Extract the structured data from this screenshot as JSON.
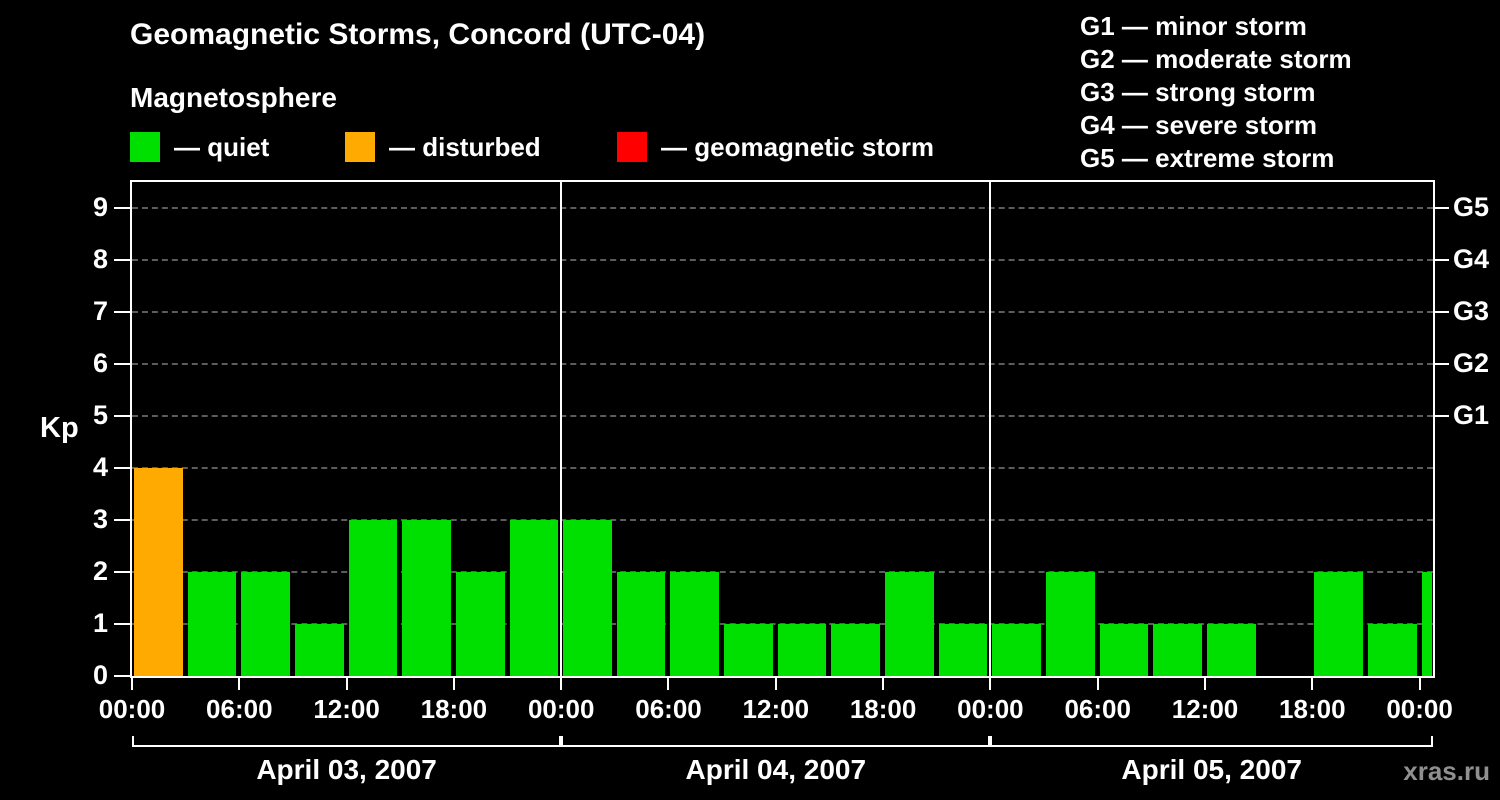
{
  "title": "Geomagnetic Storms, Concord (UTC-04)",
  "legend": {
    "heading": "Magnetosphere",
    "items": [
      {
        "name": "quiet",
        "label": "— quiet",
        "color": "#00e000"
      },
      {
        "name": "disturbed",
        "label": "— disturbed",
        "color": "#ffaa00"
      },
      {
        "name": "storm",
        "label": "— geomagnetic storm",
        "color": "#ff0000"
      }
    ]
  },
  "storm_scale": [
    "G1 — minor storm",
    "G2 — moderate storm",
    "G3 — strong storm",
    "G4 — severe storm",
    "G5 — extreme storm"
  ],
  "watermark": "xras.ru",
  "chart_data": {
    "type": "bar",
    "title": "Geomagnetic Storms, Concord (UTC-04)",
    "ylabel": "Kp",
    "ylim": [
      0,
      9.5
    ],
    "yticks": [
      0,
      1,
      2,
      3,
      4,
      5,
      6,
      7,
      8,
      9
    ],
    "grid": true,
    "right_axis_labels": [
      {
        "kp": 5,
        "label": "G1"
      },
      {
        "kp": 6,
        "label": "G2"
      },
      {
        "kp": 7,
        "label": "G3"
      },
      {
        "kp": 8,
        "label": "G4"
      },
      {
        "kp": 9,
        "label": "G5"
      }
    ],
    "x_hours_total": 72.75,
    "time_tick_interval_hours": 6,
    "time_ticks": [
      "00:00",
      "06:00",
      "12:00",
      "18:00",
      "00:00",
      "06:00",
      "12:00",
      "18:00",
      "00:00",
      "06:00",
      "12:00",
      "18:00",
      "00:00"
    ],
    "days": [
      {
        "label": "April 03, 2007",
        "start_hour": 0
      },
      {
        "label": "April 04, 2007",
        "start_hour": 24
      },
      {
        "label": "April 05, 2007",
        "start_hour": 48
      }
    ],
    "colors": {
      "quiet": "#00e000",
      "disturbed": "#ffaa00",
      "storm": "#ff0000"
    },
    "bars": [
      {
        "start_hour": 0,
        "kp": 4
      },
      {
        "start_hour": 3,
        "kp": 2
      },
      {
        "start_hour": 6,
        "kp": 2
      },
      {
        "start_hour": 9,
        "kp": 1
      },
      {
        "start_hour": 12,
        "kp": 3
      },
      {
        "start_hour": 15,
        "kp": 3
      },
      {
        "start_hour": 18,
        "kp": 2
      },
      {
        "start_hour": 21,
        "kp": 3
      },
      {
        "start_hour": 24,
        "kp": 3
      },
      {
        "start_hour": 27,
        "kp": 2
      },
      {
        "start_hour": 30,
        "kp": 2
      },
      {
        "start_hour": 33,
        "kp": 1
      },
      {
        "start_hour": 36,
        "kp": 1
      },
      {
        "start_hour": 39,
        "kp": 1
      },
      {
        "start_hour": 42,
        "kp": 2
      },
      {
        "start_hour": 45,
        "kp": 1
      },
      {
        "start_hour": 48,
        "kp": 1
      },
      {
        "start_hour": 51,
        "kp": 2
      },
      {
        "start_hour": 54,
        "kp": 1
      },
      {
        "start_hour": 57,
        "kp": 1
      },
      {
        "start_hour": 60,
        "kp": 1
      },
      {
        "start_hour": 66,
        "kp": 2
      },
      {
        "start_hour": 69,
        "kp": 1
      },
      {
        "start_hour": 72,
        "kp": 2,
        "partial": true
      }
    ]
  }
}
